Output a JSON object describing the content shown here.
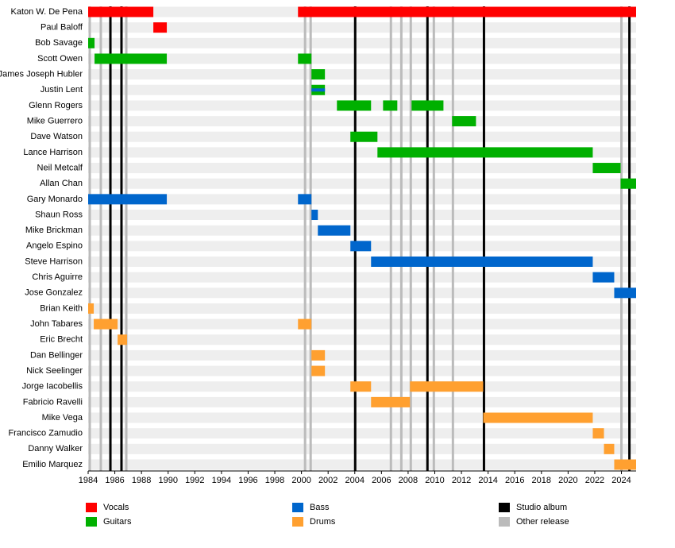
{
  "chart_data": {
    "type": "timeline",
    "xlim": [
      1984,
      2025.1
    ],
    "xticks": [
      1984,
      1986,
      1988,
      1990,
      1992,
      1994,
      1996,
      1998,
      2000,
      2002,
      2004,
      2006,
      2008,
      2010,
      2012,
      2014,
      2016,
      2018,
      2020,
      2022,
      2024
    ],
    "roles": [
      {
        "name": "Vocals",
        "color": "#ff0000"
      },
      {
        "name": "Guitars",
        "color": "#00b000"
      },
      {
        "name": "Bass",
        "color": "#0066cc"
      },
      {
        "name": "Drums",
        "color": "#ffa030"
      }
    ],
    "releases": [
      {
        "name": "Studio album",
        "color": "#000000",
        "years": [
          1985.67,
          1986.5,
          2004.03,
          2009.45,
          2013.69,
          2024.6
        ]
      },
      {
        "name": "Other release",
        "color": "#bbbbbb",
        "years": [
          1984.12,
          1984.95,
          1986.86,
          2000.27,
          2000.69,
          2006.71,
          2007.49,
          2008.2,
          2009.93,
          2011.36,
          2024.0
        ]
      }
    ],
    "members": [
      {
        "name": "Katon W. De Pena",
        "segments": [
          {
            "role": "Vocals",
            "start": 1984,
            "end": 1988.89
          },
          {
            "role": "Vocals",
            "start": 1999.74,
            "end": 2025.1
          }
        ]
      },
      {
        "name": "Paul Baloff",
        "segments": [
          {
            "role": "Vocals",
            "start": 1988.89,
            "end": 1989.9
          }
        ]
      },
      {
        "name": "Bob Savage",
        "segments": [
          {
            "role": "Guitars",
            "start": 1984,
            "end": 1984.48
          }
        ]
      },
      {
        "name": "Scott Owen",
        "segments": [
          {
            "role": "Guitars",
            "start": 1984.48,
            "end": 1989.9
          },
          {
            "role": "Guitars",
            "start": 1999.74,
            "end": 2000.75
          }
        ]
      },
      {
        "name": "James Joseph Hubler",
        "segments": [
          {
            "role": "Guitars",
            "start": 2000.75,
            "end": 2001.76
          }
        ]
      },
      {
        "name": "Justin Lent",
        "segments": [
          {
            "role": "Guitars",
            "start": 2000.75,
            "end": 2001.76
          },
          {
            "role": "Bass",
            "start": 2000.75,
            "end": 2001.76
          }
        ]
      },
      {
        "name": "Glenn Rogers",
        "segments": [
          {
            "role": "Guitars",
            "start": 2002.66,
            "end": 2005.22
          },
          {
            "role": "Guitars",
            "start": 2006.12,
            "end": 2007.19
          },
          {
            "role": "Guitars",
            "start": 2008.26,
            "end": 2010.65
          }
        ]
      },
      {
        "name": "Mike Guerrero",
        "segments": [
          {
            "role": "Guitars",
            "start": 2011.3,
            "end": 2013.09
          }
        ]
      },
      {
        "name": "Dave Watson",
        "segments": [
          {
            "role": "Guitars",
            "start": 2003.67,
            "end": 2005.7
          }
        ]
      },
      {
        "name": "Lance Harrison",
        "segments": [
          {
            "role": "Guitars",
            "start": 2005.7,
            "end": 2021.85
          }
        ]
      },
      {
        "name": "Neil Metcalf",
        "segments": [
          {
            "role": "Guitars",
            "start": 2021.85,
            "end": 2023.94
          }
        ]
      },
      {
        "name": "Allan Chan",
        "segments": [
          {
            "role": "Guitars",
            "start": 2023.94,
            "end": 2025.1
          }
        ]
      },
      {
        "name": "Gary Monardo",
        "segments": [
          {
            "role": "Bass",
            "start": 1984,
            "end": 1989.9
          },
          {
            "role": "Bass",
            "start": 1999.74,
            "end": 2000.75
          }
        ]
      },
      {
        "name": "Shaun Ross",
        "segments": [
          {
            "role": "Bass",
            "start": 2000.75,
            "end": 2001.23
          }
        ]
      },
      {
        "name": "Mike Brickman",
        "segments": [
          {
            "role": "Bass",
            "start": 2001.23,
            "end": 2003.67
          }
        ]
      },
      {
        "name": "Angelo Espino",
        "segments": [
          {
            "role": "Bass",
            "start": 2003.67,
            "end": 2005.22
          }
        ]
      },
      {
        "name": "Steve Harrison",
        "segments": [
          {
            "role": "Bass",
            "start": 2005.22,
            "end": 2021.85
          }
        ]
      },
      {
        "name": "Chris Aguirre",
        "segments": [
          {
            "role": "Bass",
            "start": 2021.85,
            "end": 2023.46
          }
        ]
      },
      {
        "name": "Jose Gonzalez",
        "segments": [
          {
            "role": "Bass",
            "start": 2023.46,
            "end": 2025.1
          }
        ]
      },
      {
        "name": "Brian Keith",
        "segments": [
          {
            "role": "Drums",
            "start": 1984,
            "end": 1984.42
          }
        ]
      },
      {
        "name": "John Tabares",
        "segments": [
          {
            "role": "Drums",
            "start": 1984.42,
            "end": 1986.21
          },
          {
            "role": "Drums",
            "start": 1999.74,
            "end": 2000.75
          }
        ]
      },
      {
        "name": "Eric Brecht",
        "segments": [
          {
            "role": "Drums",
            "start": 1986.21,
            "end": 1986.92
          }
        ]
      },
      {
        "name": "Dan Bellinger",
        "segments": [
          {
            "role": "Drums",
            "start": 2000.75,
            "end": 2001.76
          }
        ]
      },
      {
        "name": "Nick Seelinger",
        "segments": [
          {
            "role": "Drums",
            "start": 2000.75,
            "end": 2001.76
          }
        ]
      },
      {
        "name": "Jorge Iacobellis",
        "segments": [
          {
            "role": "Drums",
            "start": 2003.67,
            "end": 2005.22
          },
          {
            "role": "Drums",
            "start": 2008.14,
            "end": 2013.63
          }
        ]
      },
      {
        "name": "Fabricio Ravelli",
        "segments": [
          {
            "role": "Drums",
            "start": 2005.22,
            "end": 2008.14
          }
        ]
      },
      {
        "name": "Mike Vega",
        "segments": [
          {
            "role": "Drums",
            "start": 2013.63,
            "end": 2021.85
          }
        ]
      },
      {
        "name": "Francisco Zamudio",
        "segments": [
          {
            "role": "Drums",
            "start": 2021.85,
            "end": 2022.69
          }
        ]
      },
      {
        "name": "Danny Walker",
        "segments": [
          {
            "role": "Drums",
            "start": 2022.69,
            "end": 2023.46
          }
        ]
      },
      {
        "name": "Emilio Marquez",
        "segments": [
          {
            "role": "Drums",
            "start": 2023.46,
            "end": 2025.1
          }
        ]
      }
    ]
  }
}
